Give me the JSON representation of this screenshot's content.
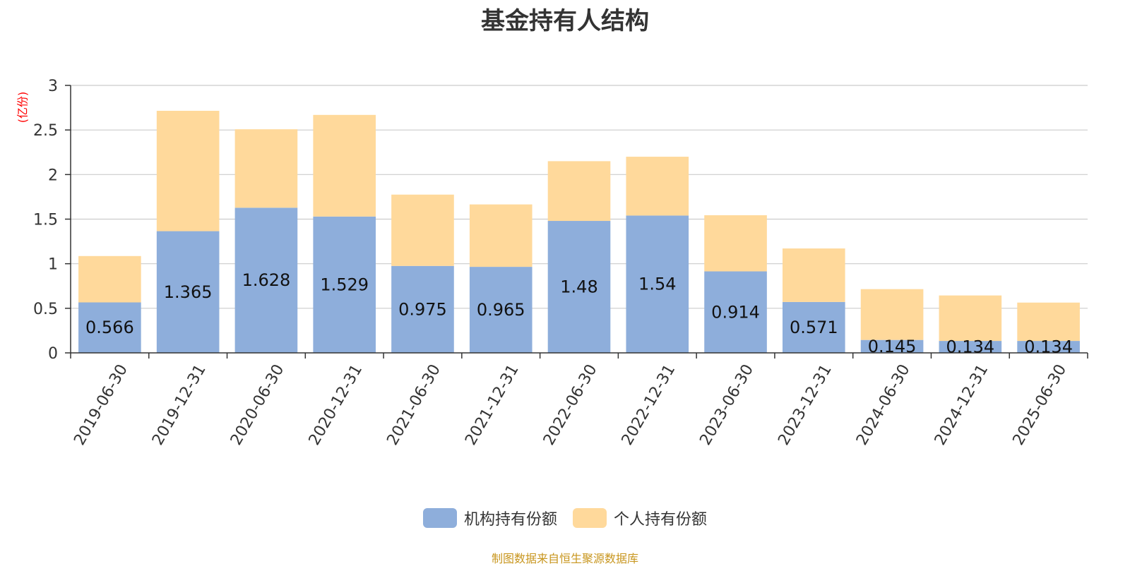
{
  "chart_data": {
    "type": "bar",
    "stacked": true,
    "title": "基金持有人结构",
    "unit_label": "(亿份)",
    "categories": [
      "2019-06-30",
      "2019-12-31",
      "2020-06-30",
      "2020-12-31",
      "2021-06-30",
      "2021-12-31",
      "2022-06-30",
      "2022-12-31",
      "2023-06-30",
      "2023-12-31",
      "2024-06-30",
      "2024-12-31",
      "2025-06-30"
    ],
    "series": [
      {
        "name": "机构持有份额",
        "color": "#8eaedb",
        "values": [
          0.566,
          1.365,
          1.628,
          1.529,
          0.975,
          0.965,
          1.48,
          1.54,
          0.914,
          0.571,
          0.145,
          0.134,
          0.134
        ]
      },
      {
        "name": "个人持有份额",
        "color": "#ffd99b",
        "values": [
          0.52,
          1.35,
          0.88,
          1.14,
          0.8,
          0.7,
          0.67,
          0.66,
          0.63,
          0.6,
          0.57,
          0.51,
          0.43
        ]
      }
    ],
    "data_labels": [
      "0.566",
      "1.365",
      "1.628",
      "1.529",
      "0.975",
      "0.965",
      "1.48",
      "1.54",
      "0.914",
      "0.571",
      "0.145",
      "0.134",
      "0.134"
    ],
    "yticks": [
      "0",
      "0.5",
      "1",
      "1.5",
      "2",
      "2.5",
      "3"
    ],
    "ylim": [
      0,
      3
    ],
    "grid": true,
    "legend_position": "bottom"
  },
  "source_note": "制图数据来自恒生聚源数据库"
}
